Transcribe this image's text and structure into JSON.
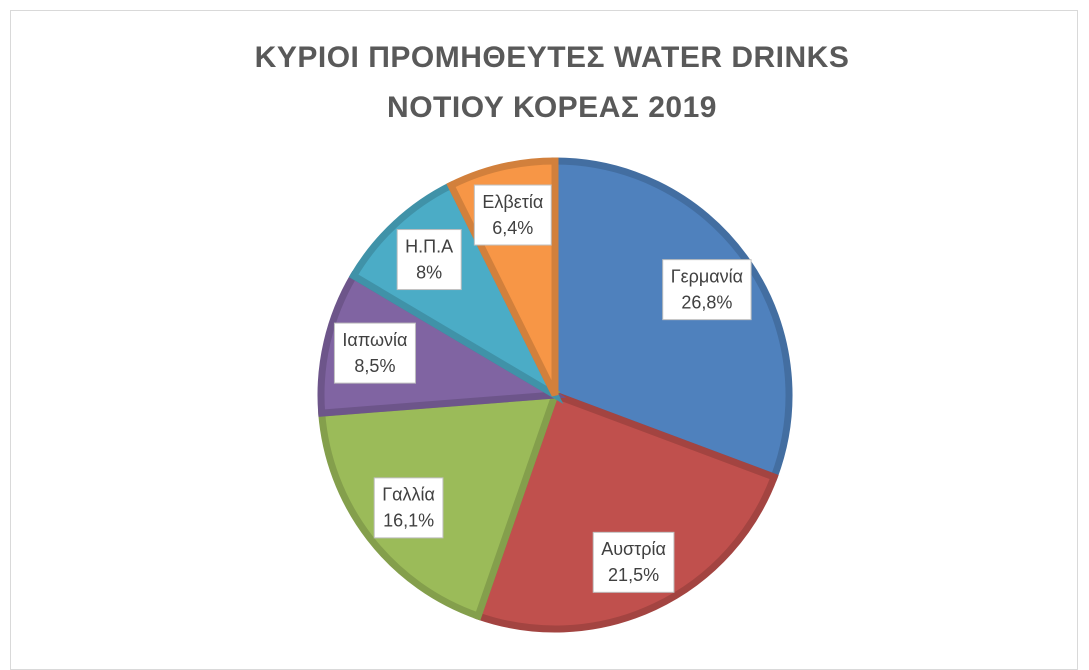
{
  "chart_data": {
    "type": "pie",
    "title": "ΚΥΡΙΟΙ ΠΡΟΜΗΘΕΥΤΕΣ WATER DRINKS ΝΟΤΙΟΥ ΚΟΡΕΑΣ 2019",
    "categories": [
      "Γερμανία",
      "Αυστρία",
      "Γαλλία",
      "Ιαπωνία",
      "Η.Π.Α",
      "Ελβετία"
    ],
    "values": [
      26.8,
      21.5,
      16.1,
      8.5,
      8,
      6.4
    ],
    "value_labels": [
      "26,8%",
      "21,5%",
      "16,1%",
      "8,5%",
      "8%",
      "6,4%"
    ],
    "colors": [
      "#4f81bd",
      "#c0504d",
      "#9bbb59",
      "#8064a2",
      "#4bacc6",
      "#f79646"
    ]
  }
}
